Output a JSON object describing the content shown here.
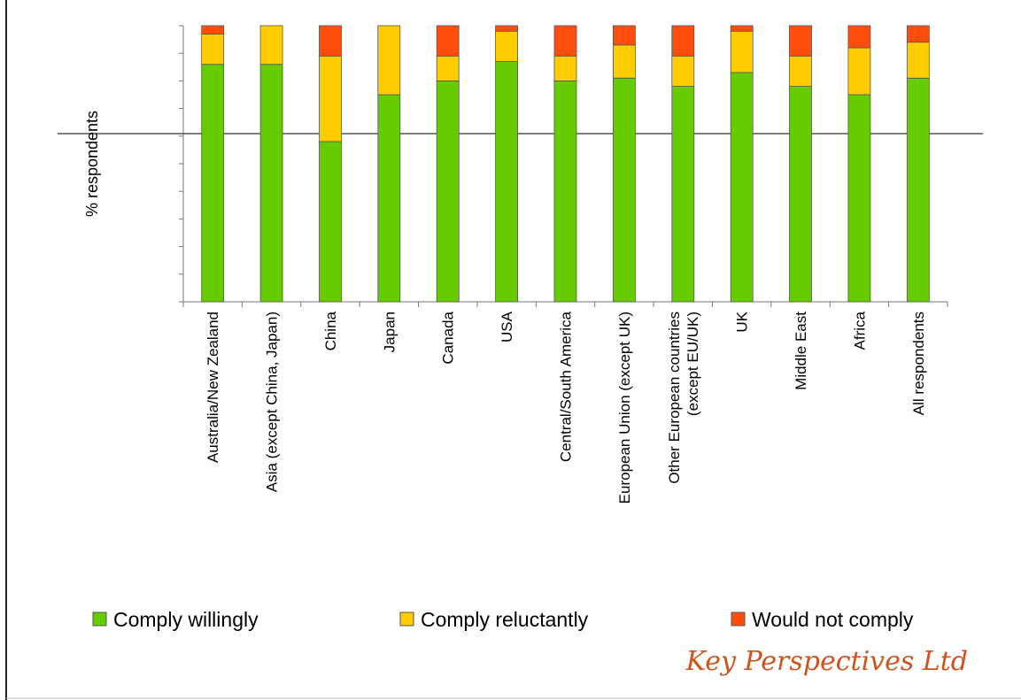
{
  "chart_data": {
    "type": "bar",
    "stacked": true,
    "ylabel": "% respondents",
    "ylim": [
      0,
      100
    ],
    "grid": false,
    "legend_position": "bottom",
    "categories": [
      "Australia/New Zealand",
      "Asia (except China, Japan)",
      "China",
      "Japan",
      "Canada",
      "USA",
      "Central/South America",
      "European Union (except UK)",
      "Other European countries\n(except EU/UK)",
      "UK",
      "Middle East",
      "Africa",
      "All respondents"
    ],
    "series": [
      {
        "name": "Comply willingly",
        "color": "#66cc00",
        "values": [
          86,
          86,
          58,
          75,
          80,
          87,
          80,
          81,
          78,
          83,
          78,
          75,
          81
        ]
      },
      {
        "name": "Comply reluctantly",
        "color": "#ffcc00",
        "values": [
          11,
          14,
          31,
          25,
          9,
          11,
          9,
          12,
          11,
          15,
          11,
          17,
          13
        ]
      },
      {
        "name": "Would not comply",
        "color": "#ff4d0d",
        "values": [
          3,
          0,
          11,
          0,
          11,
          2,
          11,
          7,
          11,
          2,
          11,
          8,
          6
        ]
      }
    ]
  },
  "branding": {
    "text": "Key Perspectives Ltd"
  }
}
